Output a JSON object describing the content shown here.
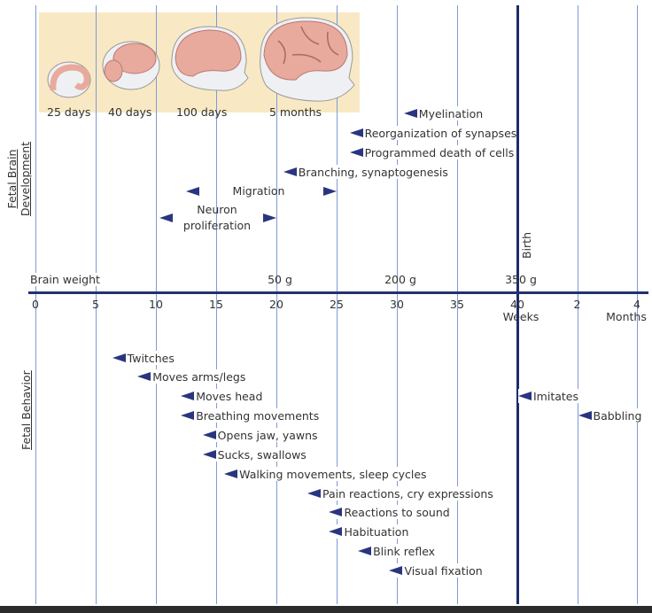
{
  "colors": {
    "gridline": "#7e9ad6",
    "birth_line": "#1d2b6b",
    "arrow": "#2a3580",
    "panel": "#f8e9c4",
    "brain": "#e8aa9c"
  },
  "brain_stages": [
    "25 days",
    "40 days",
    "100 days",
    "5 months"
  ],
  "section_labels": {
    "brain_line1": "Fetal Brain",
    "brain_line2": "Development",
    "behavior": "Fetal Behavior",
    "birth": "Birth"
  },
  "brain_weight": {
    "label": "Brain weight",
    "values": [
      {
        "label": "50 g",
        "at_weeks": 20
      },
      {
        "label": "200 g",
        "at_weeks": 30
      },
      {
        "label": "350 g",
        "at_weeks": 40
      }
    ]
  },
  "axis": {
    "week_ticks": [
      "0",
      "5",
      "10",
      "15",
      "20",
      "25",
      "30",
      "35",
      "40"
    ],
    "weeks_unit": "Weeks",
    "month_ticks": [
      "2",
      "4"
    ],
    "months_unit": "Months"
  },
  "brain_development": [
    {
      "label": "Myelination",
      "at_weeks": 30.5
    },
    {
      "label": "Reorganization of synapses",
      "at_weeks": 26
    },
    {
      "label": "Programmed death of cells",
      "at_weeks": 26
    },
    {
      "label": "Branching, synaptogenesis",
      "at_weeks": 20.5
    }
  ],
  "brain_ranges": [
    {
      "label": "Migration",
      "from_weeks": 12.5,
      "to_weeks": 25
    },
    {
      "label_line1": "Neuron",
      "label_line2": "proliferation",
      "from_weeks": 10.3,
      "to_weeks": 20
    }
  ],
  "behavior": [
    {
      "label": "Twitches",
      "at_weeks": 6.3
    },
    {
      "label": "Moves arms/legs",
      "at_weeks": 8.4
    },
    {
      "label": "Moves head",
      "at_weeks": 12
    },
    {
      "label": "Breathing movements",
      "at_weeks": 12
    },
    {
      "label": "Opens jaw, yawns",
      "at_weeks": 13.8
    },
    {
      "label": "Sucks, swallows",
      "at_weeks": 13.8
    },
    {
      "label": "Walking movements, sleep cycles",
      "at_weeks": 15.6
    },
    {
      "label": "Pain reactions, cry expressions",
      "at_weeks": 22.5
    },
    {
      "label": "Reactions to sound",
      "at_weeks": 24.3
    },
    {
      "label": "Habituation",
      "at_weeks": 24.3
    },
    {
      "label": "Blink reflex",
      "at_weeks": 26.7
    },
    {
      "label": "Visual fixation",
      "at_weeks": 29.3
    },
    {
      "label": "Imitates",
      "at_weeks": 40
    },
    {
      "label": "Babbling",
      "at_months": 2
    }
  ]
}
